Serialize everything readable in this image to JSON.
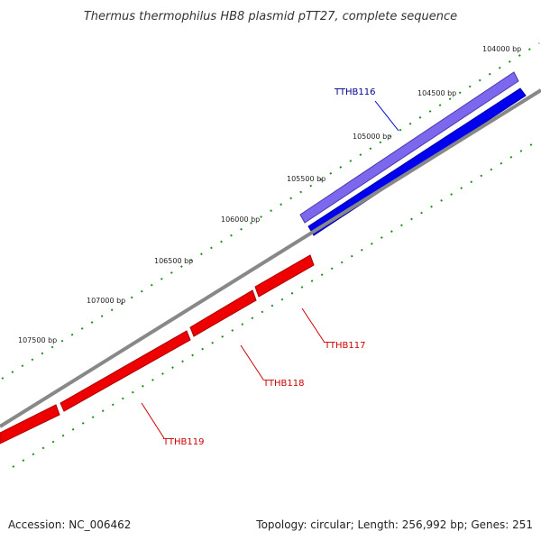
{
  "title": "Thermus thermophilus HB8 plasmid pTT27, complete sequence",
  "footer": {
    "accession": "Accession: NC_006462",
    "summary": "Topology: circular; Length: 256,992 bp; Genes: 251"
  },
  "scale_labels": [
    "104000 bp",
    "104500 bp",
    "105000 bp",
    "105500 bp",
    "106000 bp",
    "106500 bp",
    "107000 bp",
    "107500 bp"
  ],
  "genes": [
    {
      "name": "TTHB116",
      "strand": "forward",
      "color": "#0000ee"
    },
    {
      "name": "TTHB117",
      "strand": "reverse",
      "color": "#ee0000"
    },
    {
      "name": "TTHB118",
      "strand": "reverse",
      "color": "#ee0000"
    },
    {
      "name": "TTHB119",
      "strand": "reverse",
      "color": "#ee0000"
    }
  ],
  "colors": {
    "backbone": "#888888",
    "forward_feature": "#0000ee",
    "forward_feature_light": "#7b68ee",
    "reverse_feature": "#ee0000",
    "ticks": "#228b22",
    "forward_label": "#00008b",
    "reverse_label": "#cc0000"
  }
}
